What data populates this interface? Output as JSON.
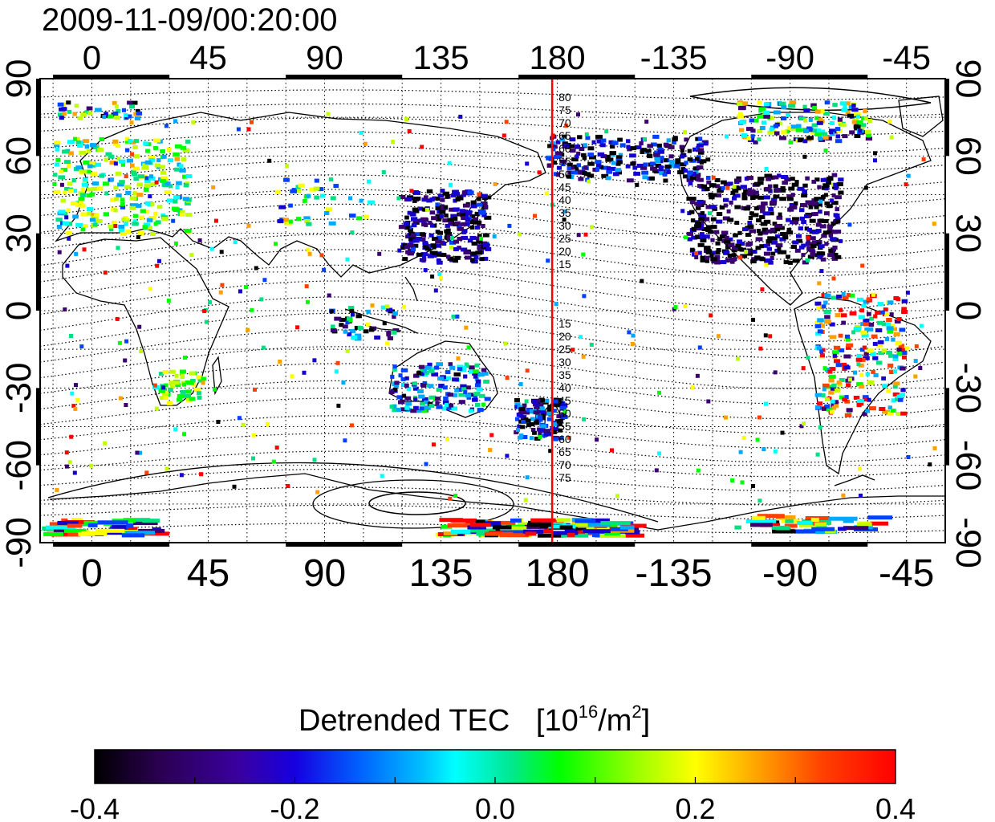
{
  "timestamp": "2009-11-09/00:20:00",
  "axes": {
    "x_ticks": [
      "0",
      "45",
      "90",
      "135",
      "180",
      "-135",
      "-90",
      "-45"
    ],
    "y_ticks": [
      "90",
      "60",
      "30",
      "0",
      "-30",
      "-60",
      "-90"
    ],
    "lon_range": [
      -20,
      330
    ],
    "lat_range": [
      -90,
      90
    ],
    "grid": "dotted every 15 degrees"
  },
  "meridian_line": {
    "longitude": 178,
    "color": "#ff0000",
    "north_labels": [
      "80",
      "75",
      "70",
      "65",
      "60",
      "55",
      "50",
      "45",
      "40",
      "35",
      "30",
      "25",
      "20",
      "15"
    ],
    "south_labels": [
      "15",
      "20",
      "25",
      "30",
      "35",
      "40",
      "45",
      "50",
      "55",
      "60",
      "65",
      "70",
      "75"
    ]
  },
  "colorbar": {
    "title": "Detrended TEC",
    "unit_prefix": "[10",
    "unit_exp": "16",
    "unit_mid": "/m",
    "unit_exp2": "2",
    "unit_suffix": "]",
    "tick_labels": [
      "-0.4",
      "-0.2",
      "0.0",
      "0.2",
      "0.4"
    ],
    "range": [
      -0.4,
      0.4
    ],
    "colormap": [
      "#000000",
      "#3a0070",
      "#1600d0",
      "#0040ff",
      "#00a8ff",
      "#00ffff",
      "#00e080",
      "#00ff00",
      "#c0ff00",
      "#ffff00",
      "#ffa000",
      "#ff4000",
      "#ff0000"
    ]
  }
}
